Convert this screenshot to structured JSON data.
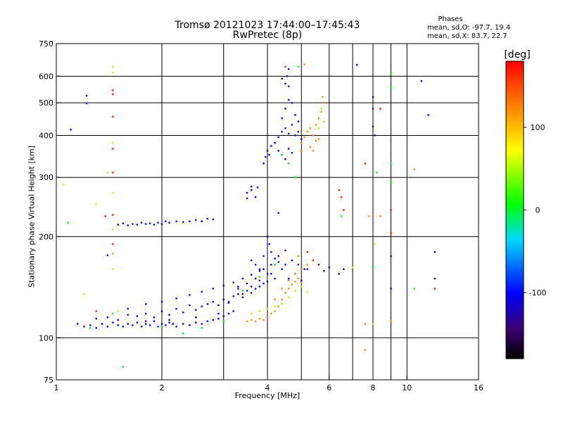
{
  "chart_data": {
    "type": "scatter",
    "title": "Tromsø 20121023 17:44:00–17:45:43",
    "subtitle": "RwPretec (8p)",
    "stats": {
      "heading": "Phases",
      "o_mode": "mean, sd,O: -97.7, 19.4",
      "x_mode": "mean, sd,X:  83.7, 22.7"
    },
    "xlabel": "Frequency [MHz]",
    "ylabel": "Stationary phase Virtual Height [km]",
    "x_scale": "log",
    "y_scale": "log",
    "xlim": [
      1,
      16
    ],
    "ylim": [
      75,
      750
    ],
    "x_ticks": [
      1,
      2,
      4,
      6,
      8,
      10,
      16
    ],
    "y_ticks": [
      75,
      100,
      200,
      300,
      400,
      500,
      600,
      750
    ],
    "x_grid": [
      2,
      3,
      4,
      5,
      6,
      7,
      8,
      9,
      10
    ],
    "y_grid": [
      100,
      200,
      300,
      400,
      500,
      600
    ],
    "colorbar": {
      "label": "[deg]",
      "range": [
        -180,
        180
      ],
      "ticks": [
        100,
        0,
        -100
      ]
    },
    "series": [
      {
        "phase": -100,
        "points": [
          [
            1.15,
            110
          ],
          [
            1.2,
            108
          ],
          [
            1.25,
            109
          ],
          [
            1.3,
            107
          ],
          [
            1.35,
            110
          ],
          [
            1.4,
            108
          ],
          [
            1.45,
            111
          ],
          [
            1.5,
            109
          ],
          [
            1.55,
            108
          ],
          [
            1.6,
            110
          ],
          [
            1.65,
            109
          ],
          [
            1.7,
            111
          ],
          [
            1.75,
            108
          ],
          [
            1.8,
            110
          ],
          [
            1.85,
            109
          ],
          [
            1.9,
            112
          ],
          [
            1.95,
            108
          ],
          [
            2.0,
            110
          ],
          [
            2.05,
            109
          ],
          [
            2.1,
            111
          ],
          [
            2.15,
            110
          ],
          [
            2.2,
            108
          ],
          [
            2.3,
            110
          ],
          [
            2.4,
            109
          ],
          [
            2.5,
            111
          ],
          [
            2.6,
            110
          ],
          [
            2.7,
            112
          ],
          [
            2.8,
            113
          ],
          [
            2.9,
            114
          ],
          [
            3.0,
            116
          ],
          [
            3.1,
            118
          ],
          [
            3.2,
            120
          ],
          [
            1.3,
            114
          ],
          [
            1.4,
            115
          ],
          [
            1.5,
            113
          ],
          [
            1.6,
            117
          ],
          [
            1.7,
            116
          ],
          [
            1.8,
            118
          ],
          [
            1.9,
            115
          ],
          [
            2.0,
            120
          ],
          [
            2.1,
            117
          ],
          [
            2.2,
            122
          ],
          [
            2.3,
            119
          ],
          [
            2.4,
            125
          ],
          [
            2.5,
            121
          ],
          [
            2.6,
            124
          ],
          [
            2.7,
            126
          ],
          [
            2.8,
            128
          ],
          [
            2.9,
            125
          ],
          [
            3.0,
            130
          ],
          [
            3.1,
            127
          ],
          [
            3.2,
            133
          ],
          [
            3.3,
            135
          ],
          [
            3.4,
            132
          ],
          [
            3.5,
            138
          ],
          [
            3.6,
            136
          ],
          [
            3.7,
            140
          ],
          [
            3.8,
            142
          ],
          [
            3.9,
            145
          ],
          [
            4.0,
            147
          ],
          [
            1.6,
            122
          ],
          [
            1.8,
            126
          ],
          [
            2.0,
            128
          ],
          [
            2.2,
            131
          ],
          [
            2.4,
            134
          ],
          [
            2.6,
            137
          ],
          [
            2.8,
            140
          ],
          [
            3.0,
            143
          ],
          [
            3.2,
            146
          ],
          [
            3.4,
            150
          ],
          [
            3.6,
            154
          ],
          [
            3.8,
            158
          ],
          [
            1.5,
            217
          ],
          [
            1.55,
            219
          ],
          [
            1.6,
            216
          ],
          [
            1.65,
            218
          ],
          [
            1.7,
            217
          ],
          [
            1.75,
            220
          ],
          [
            1.8,
            218
          ],
          [
            1.85,
            219
          ],
          [
            1.9,
            217
          ],
          [
            1.95,
            220
          ],
          [
            2.0,
            218
          ],
          [
            2.05,
            222
          ],
          [
            2.1,
            220
          ],
          [
            2.2,
            222
          ],
          [
            2.3,
            221
          ],
          [
            2.4,
            222
          ],
          [
            2.5,
            224
          ],
          [
            2.6,
            222
          ],
          [
            2.7,
            226
          ],
          [
            2.8,
            225
          ],
          [
            3.5,
            270
          ],
          [
            3.6,
            275
          ],
          [
            3.7,
            262
          ],
          [
            3.75,
            280
          ],
          [
            3.9,
            330
          ],
          [
            3.95,
            345
          ],
          [
            4.0,
            360
          ],
          [
            4.05,
            350
          ],
          [
            4.1,
            372
          ],
          [
            4.2,
            380
          ],
          [
            4.3,
            395
          ],
          [
            4.4,
            410
          ],
          [
            4.5,
            420
          ],
          [
            4.6,
            405
          ],
          [
            4.7,
            430
          ],
          [
            4.3,
            360
          ],
          [
            4.4,
            350
          ],
          [
            4.5,
            340
          ],
          [
            4.6,
            365
          ],
          [
            4.7,
            355
          ],
          [
            4.8,
            400
          ],
          [
            4.9,
            410
          ],
          [
            5.0,
            390
          ],
          [
            4.4,
            450
          ],
          [
            4.5,
            480
          ],
          [
            4.6,
            510
          ],
          [
            4.5,
            570
          ],
          [
            4.55,
            600
          ],
          [
            4.6,
            630
          ],
          [
            4.7,
            500
          ],
          [
            4.8,
            460
          ],
          [
            4.9,
            440
          ],
          [
            4.0,
            200
          ],
          [
            4.05,
            190
          ],
          [
            4.1,
            180
          ],
          [
            4.2,
            172
          ],
          [
            4.3,
            168
          ],
          [
            4.4,
            160
          ],
          [
            4.5,
            165
          ],
          [
            3.6,
            170
          ],
          [
            3.7,
            165
          ],
          [
            3.8,
            160
          ],
          [
            3.9,
            175
          ],
          [
            4.1,
            155
          ],
          [
            4.6,
            150
          ],
          [
            4.8,
            155
          ],
          [
            5.0,
            148
          ],
          [
            5.2,
            160
          ],
          [
            1.22,
            525
          ],
          [
            1.22,
            498
          ],
          [
            1.4,
            176
          ],
          [
            1.1,
            416
          ],
          [
            7.2,
            648
          ],
          [
            8.0,
            520
          ],
          [
            8.0,
            425
          ],
          [
            1.55,
            82
          ],
          [
            9.0,
            140
          ],
          [
            11.0,
            580
          ],
          [
            11.5,
            460
          ],
          [
            4.3,
            235
          ],
          [
            4.2,
            150
          ],
          [
            3.3,
            142
          ],
          [
            2.9,
            118
          ]
        ]
      },
      {
        "phase": -140,
        "points": [
          [
            1.8,
            112
          ],
          [
            2.1,
            113
          ],
          [
            2.5,
            115
          ],
          [
            3.1,
            128
          ],
          [
            3.3,
            140
          ],
          [
            3.5,
            145
          ],
          [
            3.7,
            150
          ],
          [
            3.9,
            160
          ],
          [
            4.1,
            165
          ],
          [
            4.3,
            175
          ],
          [
            4.5,
            182
          ],
          [
            4.7,
            170
          ],
          [
            4.9,
            165
          ],
          [
            5.1,
            160
          ],
          [
            3.4,
            135
          ],
          [
            3.6,
            142
          ],
          [
            3.8,
            148
          ],
          [
            4.0,
            155
          ],
          [
            5.6,
            165
          ],
          [
            5.8,
            158
          ],
          [
            6.0,
            162
          ],
          [
            6.4,
            155
          ],
          [
            6.6,
            160
          ],
          [
            3.5,
            260
          ],
          [
            3.6,
            282
          ],
          [
            4.4,
            590
          ],
          [
            4.6,
            560
          ],
          [
            8.0,
            480
          ],
          [
            8.1,
            400
          ],
          [
            12.0,
            180
          ],
          [
            12.0,
            150
          ],
          [
            9.0,
            175
          ]
        ]
      },
      {
        "phase": 120,
        "points": [
          [
            3.5,
            112
          ],
          [
            3.6,
            113
          ],
          [
            3.7,
            112
          ],
          [
            3.8,
            114
          ],
          [
            3.9,
            113
          ],
          [
            4.0,
            115
          ],
          [
            4.1,
            118
          ],
          [
            4.2,
            120
          ],
          [
            4.3,
            124
          ],
          [
            4.4,
            130
          ],
          [
            4.5,
            136
          ],
          [
            4.6,
            140
          ],
          [
            4.7,
            144
          ],
          [
            4.8,
            147
          ],
          [
            4.9,
            150
          ],
          [
            5.0,
            146
          ],
          [
            4.2,
            130
          ],
          [
            4.4,
            140
          ],
          [
            4.6,
            148
          ],
          [
            4.8,
            155
          ],
          [
            5.0,
            160
          ],
          [
            5.2,
            165
          ],
          [
            5.0,
            380
          ],
          [
            5.1,
            395
          ],
          [
            5.2,
            410
          ],
          [
            5.3,
            420
          ],
          [
            5.4,
            400
          ],
          [
            5.5,
            430
          ],
          [
            5.6,
            450
          ],
          [
            5.7,
            470
          ],
          [
            5.8,
            500
          ],
          [
            5.75,
            520
          ],
          [
            5.3,
            370
          ],
          [
            5.4,
            360
          ],
          [
            5.5,
            385
          ],
          [
            5.6,
            390
          ],
          [
            5.0,
            360
          ],
          [
            4.9,
            175
          ],
          [
            5.2,
            180
          ],
          [
            1.45,
            178
          ],
          [
            7.6,
            110
          ],
          [
            7.6,
            92
          ],
          [
            9.0,
            112
          ],
          [
            7.8,
            230
          ],
          [
            8.4,
            230
          ],
          [
            5.1,
            650
          ],
          [
            10.5,
            317
          ]
        ]
      },
      {
        "phase": 50,
        "points": [
          [
            3.6,
            118
          ],
          [
            3.8,
            120
          ],
          [
            4.0,
            122
          ],
          [
            4.2,
            124
          ],
          [
            4.4,
            126
          ],
          [
            4.6,
            132
          ],
          [
            4.8,
            138
          ],
          [
            5.0,
            142
          ],
          [
            5.2,
            137
          ],
          [
            5.6,
            420
          ],
          [
            5.7,
            480
          ],
          [
            5.8,
            440
          ],
          [
            1.45,
            640
          ],
          [
            1.45,
            615
          ],
          [
            1.45,
            380
          ],
          [
            1.45,
            270
          ],
          [
            1.45,
            210
          ],
          [
            1.45,
            160
          ],
          [
            1.3,
            250
          ],
          [
            1.4,
            310
          ],
          [
            1.5,
            120
          ],
          [
            1.08,
            220
          ],
          [
            1.05,
            285
          ],
          [
            1.2,
            135
          ],
          [
            7.0,
            162
          ],
          [
            8.0,
            110
          ],
          [
            8.1,
            190
          ]
        ]
      },
      {
        "phase": 170,
        "points": [
          [
            1.45,
            545
          ],
          [
            1.45,
            530
          ],
          [
            1.45,
            455
          ],
          [
            1.45,
            365
          ],
          [
            1.45,
            310
          ],
          [
            1.45,
            232
          ],
          [
            1.45,
            190
          ],
          [
            4.5,
            640
          ],
          [
            5.2,
            180
          ],
          [
            5.4,
            170
          ],
          [
            6.4,
            275
          ],
          [
            6.5,
            262
          ],
          [
            6.6,
            240
          ],
          [
            7.6,
            330
          ],
          [
            8.4,
            480
          ],
          [
            9.0,
            240
          ],
          [
            9.0,
            205
          ],
          [
            12.0,
            140
          ],
          [
            1.38,
            230
          ],
          [
            1.3,
            120
          ]
        ]
      },
      {
        "phase": 0,
        "points": [
          [
            1.45,
            118
          ],
          [
            1.08,
            220
          ],
          [
            1.25,
            107
          ],
          [
            2.0,
            108
          ],
          [
            2.3,
            103
          ],
          [
            2.6,
            107
          ],
          [
            3.0,
            112
          ],
          [
            3.4,
            138
          ],
          [
            3.8,
            152
          ],
          [
            4.2,
            165
          ],
          [
            4.4,
            350
          ],
          [
            4.6,
            330
          ],
          [
            4.8,
            300
          ],
          [
            8.0,
            162
          ],
          [
            8.2,
            310
          ],
          [
            9.0,
            610
          ],
          [
            9.0,
            555
          ],
          [
            9.0,
            330
          ],
          [
            9.0,
            290
          ],
          [
            4.9,
            640
          ],
          [
            1.55,
            82
          ],
          [
            6.5,
            230
          ],
          [
            10.5,
            140
          ]
        ]
      }
    ]
  }
}
